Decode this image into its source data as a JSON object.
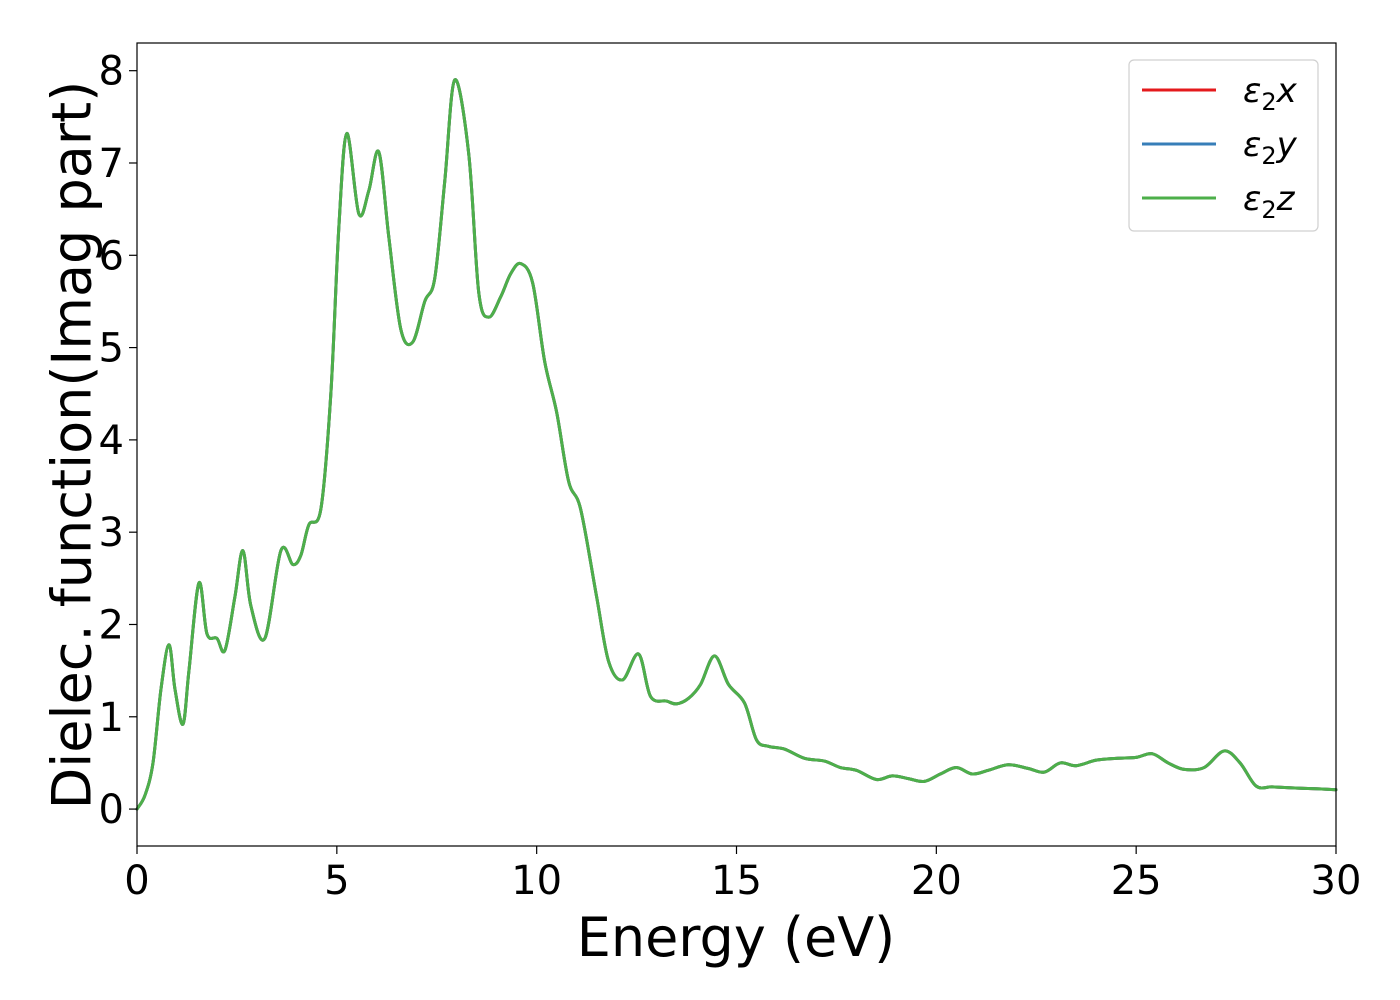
{
  "chart_data": {
    "type": "line",
    "xlabel": "Energy (eV)",
    "ylabel": "Dielec. function(Imag part)",
    "xlim": [
      0,
      30
    ],
    "ylim": [
      -0.4,
      8.3
    ],
    "x_ticks": [
      0,
      5,
      10,
      15,
      20,
      25,
      30
    ],
    "y_ticks": [
      0,
      1,
      2,
      3,
      4,
      5,
      6,
      7,
      8
    ],
    "grid": false,
    "legend_position": "top-right",
    "series": [
      {
        "name": "ε2x",
        "label_main": "ε",
        "label_sub": "2",
        "label_tail": "x",
        "color": "#e41a1c"
      },
      {
        "name": "ε2y",
        "label_main": "ε",
        "label_sub": "2",
        "label_tail": "y",
        "color": "#377eb8"
      },
      {
        "name": "ε2z",
        "label_main": "ε",
        "label_sub": "2",
        "label_tail": "z",
        "color": "#4daf4a"
      }
    ],
    "shared_curve": {
      "x": [
        0,
        0.2,
        0.4,
        0.6,
        0.8,
        0.95,
        1.15,
        1.3,
        1.55,
        1.75,
        2.0,
        2.2,
        2.45,
        2.65,
        2.85,
        3.2,
        3.6,
        3.9,
        4.1,
        4.3,
        4.6,
        4.85,
        5.05,
        5.25,
        5.55,
        5.8,
        6.05,
        6.3,
        6.6,
        6.9,
        7.2,
        7.45,
        7.7,
        7.95,
        8.3,
        8.55,
        8.8,
        9.1,
        9.35,
        9.6,
        9.9,
        10.2,
        10.5,
        10.8,
        11.1,
        11.5,
        11.8,
        12.15,
        12.55,
        12.85,
        13.25,
        13.5,
        13.8,
        14.1,
        14.45,
        14.8,
        15.2,
        15.5,
        15.8,
        16.2,
        16.7,
        17.2,
        17.6,
        18.0,
        18.5,
        18.9,
        19.3,
        19.7,
        20.1,
        20.5,
        20.9,
        21.3,
        21.8,
        22.3,
        22.7,
        23.1,
        23.5,
        24.0,
        24.5,
        25.0,
        25.4,
        25.8,
        26.2,
        26.7,
        27.2,
        27.6,
        28.0,
        28.4,
        28.9,
        29.5,
        30.0
      ],
      "y": [
        0.0,
        0.15,
        0.5,
        1.3,
        1.78,
        1.3,
        0.92,
        1.5,
        2.45,
        1.9,
        1.85,
        1.72,
        2.3,
        2.8,
        2.2,
        1.85,
        2.8,
        2.65,
        2.75,
        3.08,
        3.25,
        4.5,
        6.3,
        7.32,
        6.45,
        6.7,
        7.12,
        6.2,
        5.2,
        5.06,
        5.5,
        5.75,
        6.8,
        7.9,
        7.1,
        5.6,
        5.33,
        5.55,
        5.8,
        5.91,
        5.7,
        4.85,
        4.3,
        3.55,
        3.25,
        2.3,
        1.6,
        1.4,
        1.68,
        1.22,
        1.17,
        1.14,
        1.2,
        1.35,
        1.66,
        1.35,
        1.15,
        0.75,
        0.68,
        0.65,
        0.55,
        0.52,
        0.45,
        0.42,
        0.32,
        0.36,
        0.33,
        0.3,
        0.38,
        0.45,
        0.38,
        0.42,
        0.48,
        0.44,
        0.4,
        0.5,
        0.47,
        0.53,
        0.55,
        0.56,
        0.6,
        0.5,
        0.43,
        0.45,
        0.63,
        0.5,
        0.25,
        0.24,
        0.23,
        0.22,
        0.21
      ]
    }
  }
}
